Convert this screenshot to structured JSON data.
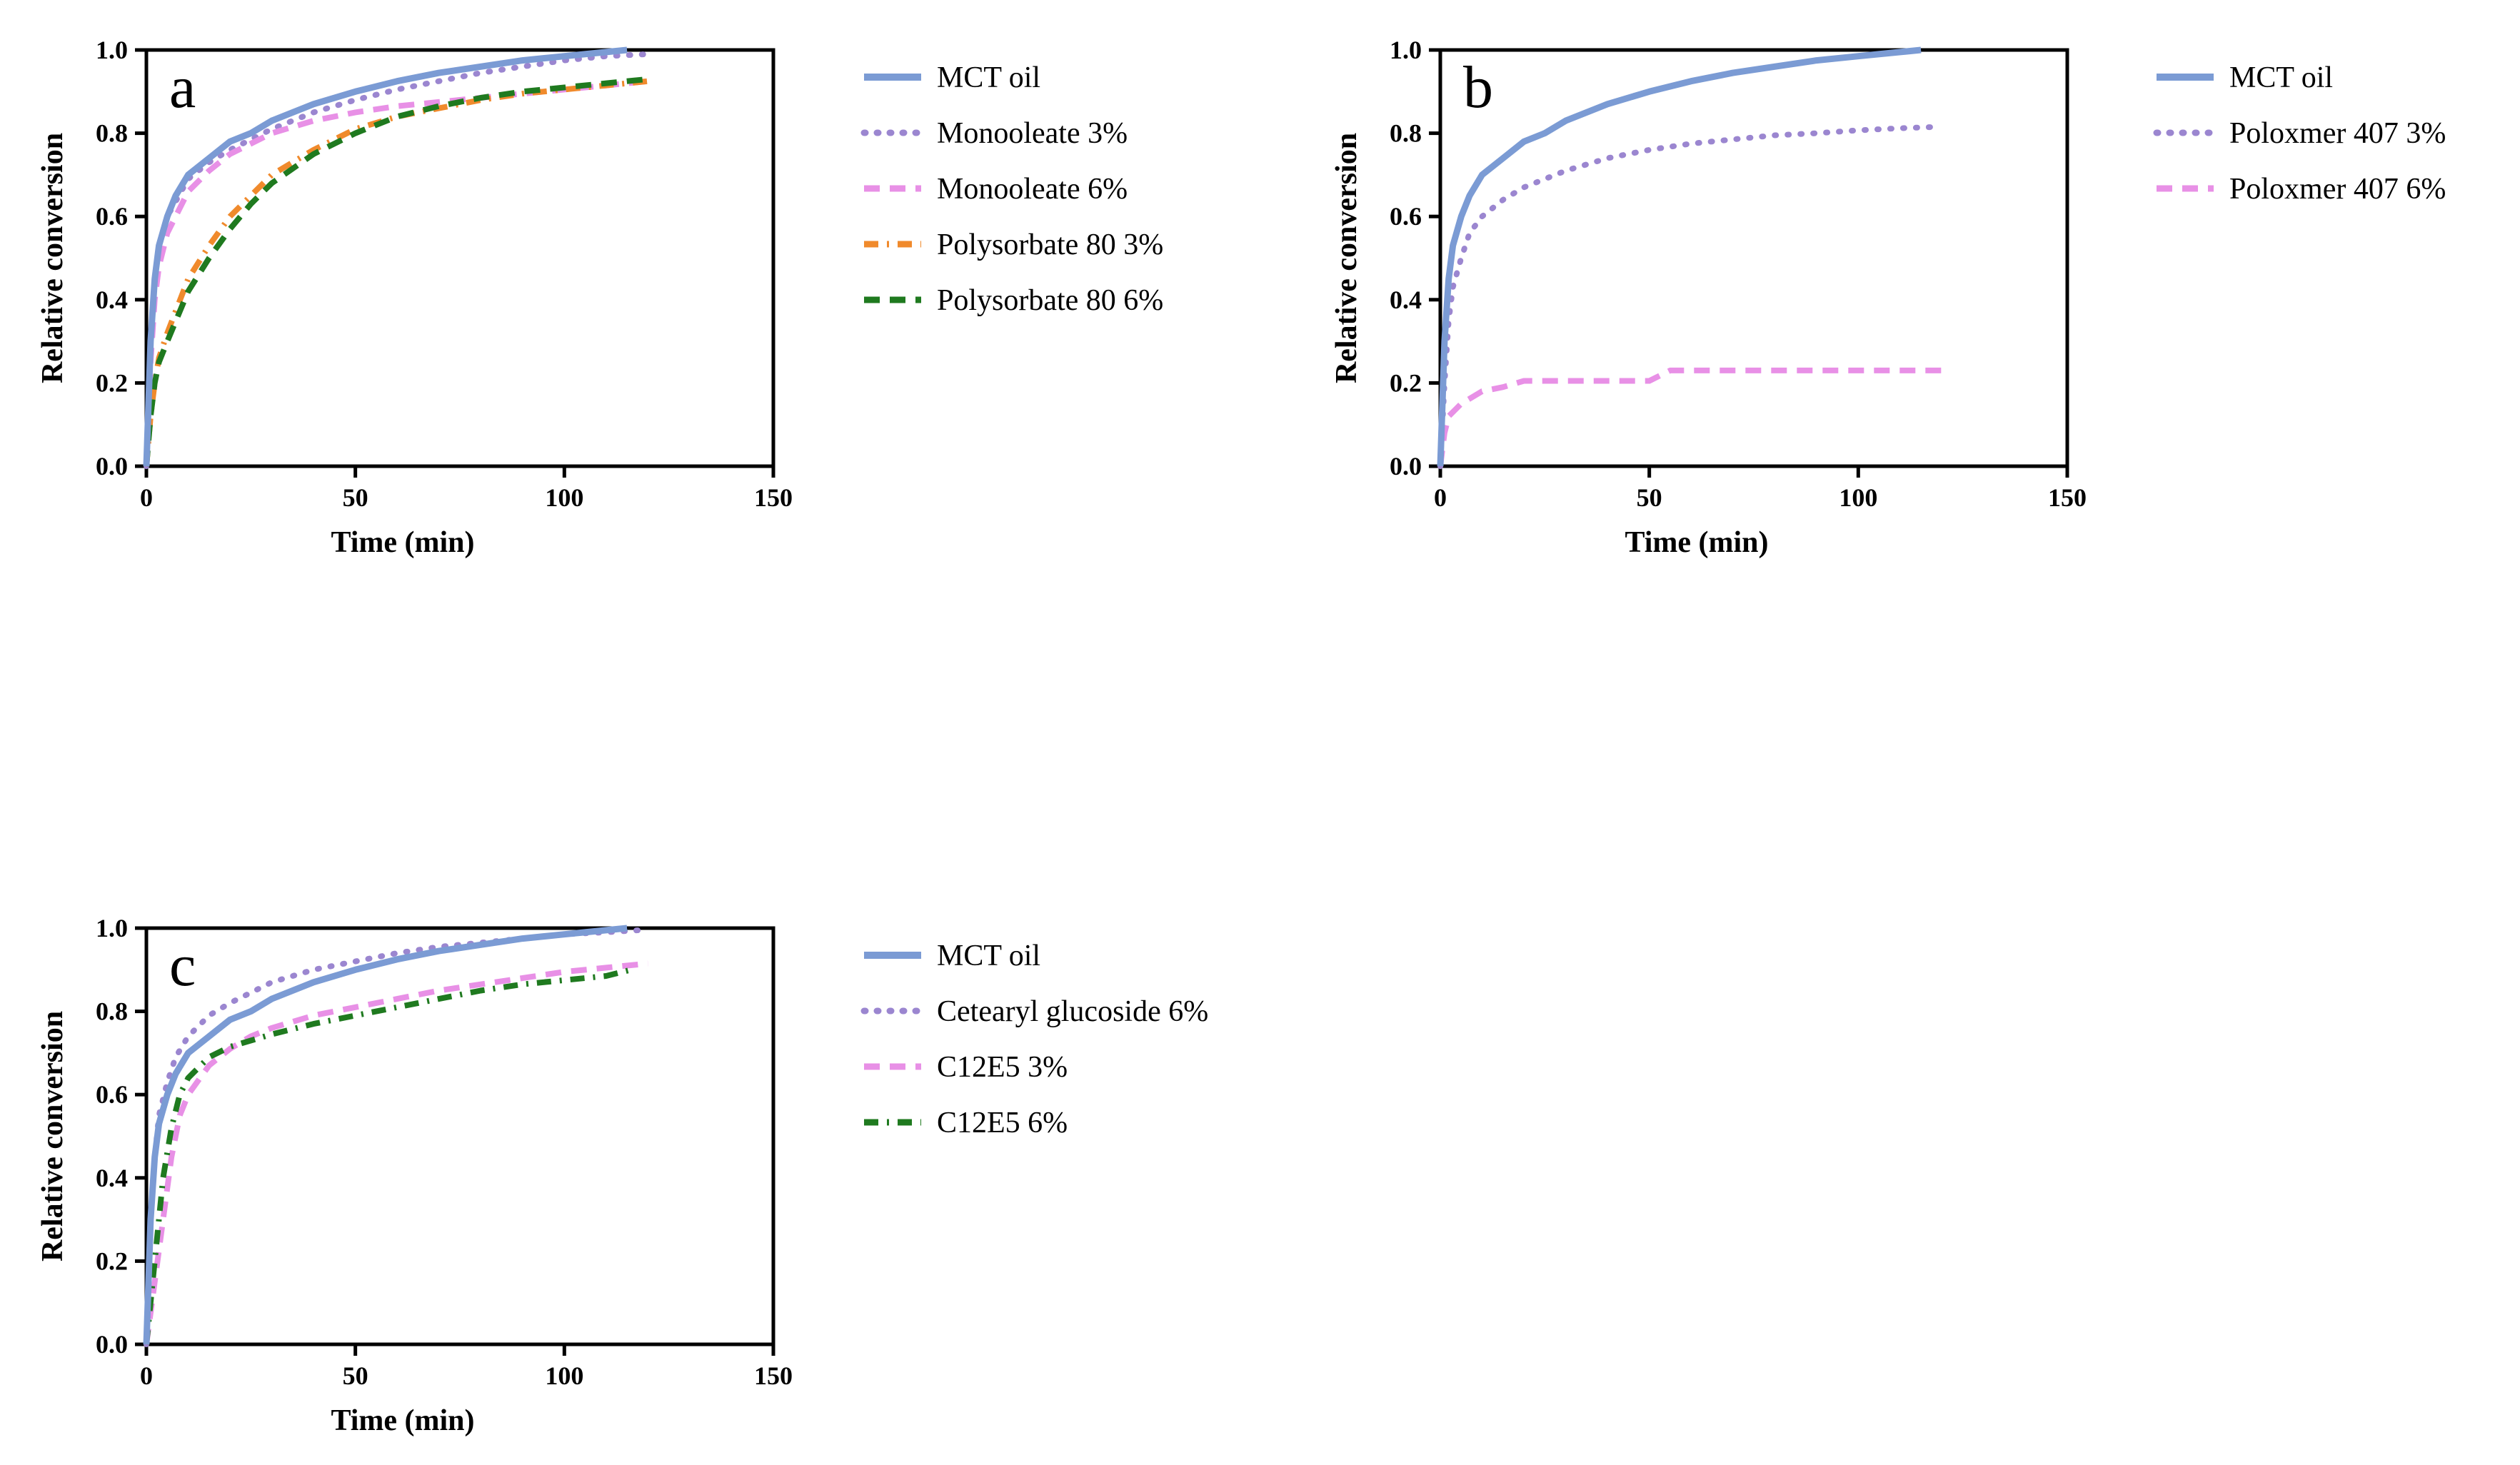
{
  "chart_data": [
    {
      "type": "line",
      "panel_label": "a",
      "xlabel": "Time (min)",
      "ylabel": "Relative conversion",
      "xlim": [
        0,
        150
      ],
      "ylim": [
        0.0,
        1.0
      ],
      "x_ticks": [
        "0",
        "50",
        "100",
        "150"
      ],
      "y_ticks": [
        "0.0",
        "0.2",
        "0.4",
        "0.6",
        "0.8",
        "1.0"
      ],
      "legend_position": "right",
      "series": [
        {
          "name": "MCT oil",
          "color": "#7b9bd4",
          "dash": "solid",
          "points": [
            [
              0,
              0
            ],
            [
              1,
              0.3
            ],
            [
              2,
              0.45
            ],
            [
              3,
              0.53
            ],
            [
              5,
              0.6
            ],
            [
              7,
              0.65
            ],
            [
              10,
              0.7
            ],
            [
              15,
              0.74
            ],
            [
              20,
              0.78
            ],
            [
              25,
              0.8
            ],
            [
              30,
              0.83
            ],
            [
              40,
              0.87
            ],
            [
              50,
              0.9
            ],
            [
              60,
              0.925
            ],
            [
              70,
              0.945
            ],
            [
              80,
              0.96
            ],
            [
              90,
              0.975
            ],
            [
              100,
              0.985
            ],
            [
              110,
              0.995
            ],
            [
              115,
              1.0
            ]
          ]
        },
        {
          "name": "Monooleate 3%",
          "color": "#9b86d0",
          "dash": "dot",
          "points": [
            [
              0,
              0
            ],
            [
              1,
              0.3
            ],
            [
              2,
              0.45
            ],
            [
              3,
              0.53
            ],
            [
              5,
              0.6
            ],
            [
              10,
              0.69
            ],
            [
              15,
              0.73
            ],
            [
              20,
              0.76
            ],
            [
              30,
              0.81
            ],
            [
              40,
              0.85
            ],
            [
              50,
              0.88
            ],
            [
              60,
              0.905
            ],
            [
              70,
              0.925
            ],
            [
              80,
              0.945
            ],
            [
              90,
              0.96
            ],
            [
              100,
              0.975
            ],
            [
              110,
              0.985
            ],
            [
              120,
              0.99
            ]
          ]
        },
        {
          "name": "Monooleate 6%",
          "color": "#e890e6",
          "dash": "dash",
          "points": [
            [
              0,
              0
            ],
            [
              1,
              0.25
            ],
            [
              2,
              0.4
            ],
            [
              3,
              0.48
            ],
            [
              5,
              0.56
            ],
            [
              10,
              0.66
            ],
            [
              15,
              0.71
            ],
            [
              20,
              0.75
            ],
            [
              30,
              0.8
            ],
            [
              40,
              0.83
            ],
            [
              50,
              0.85
            ],
            [
              60,
              0.865
            ],
            [
              70,
              0.875
            ],
            [
              80,
              0.885
            ],
            [
              90,
              0.895
            ],
            [
              100,
              0.905
            ],
            [
              110,
              0.915
            ],
            [
              120,
              0.925
            ]
          ]
        },
        {
          "name": "Polysorbate 80 3%",
          "color": "#f08a2c",
          "dash": "dashdot",
          "points": [
            [
              0,
              0
            ],
            [
              1,
              0.12
            ],
            [
              2,
              0.2
            ],
            [
              3,
              0.26
            ],
            [
              5,
              0.32
            ],
            [
              10,
              0.45
            ],
            [
              15,
              0.53
            ],
            [
              20,
              0.6
            ],
            [
              25,
              0.65
            ],
            [
              30,
              0.7
            ],
            [
              40,
              0.76
            ],
            [
              50,
              0.81
            ],
            [
              60,
              0.84
            ],
            [
              70,
              0.86
            ],
            [
              80,
              0.88
            ],
            [
              90,
              0.895
            ],
            [
              100,
              0.905
            ],
            [
              110,
              0.915
            ],
            [
              120,
              0.925
            ]
          ]
        },
        {
          "name": "Polysorbate 80 6%",
          "color": "#1f7a1f",
          "dash": "dash",
          "points": [
            [
              0,
              0
            ],
            [
              1,
              0.12
            ],
            [
              2,
              0.2
            ],
            [
              3,
              0.25
            ],
            [
              5,
              0.3
            ],
            [
              10,
              0.42
            ],
            [
              15,
              0.5
            ],
            [
              20,
              0.57
            ],
            [
              25,
              0.63
            ],
            [
              30,
              0.68
            ],
            [
              40,
              0.75
            ],
            [
              50,
              0.8
            ],
            [
              60,
              0.84
            ],
            [
              70,
              0.865
            ],
            [
              80,
              0.885
            ],
            [
              90,
              0.9
            ],
            [
              100,
              0.91
            ],
            [
              110,
              0.92
            ],
            [
              120,
              0.93
            ]
          ]
        }
      ]
    },
    {
      "type": "line",
      "panel_label": "b",
      "xlabel": "Time (min)",
      "ylabel": "Relative conversion",
      "xlim": [
        0,
        150
      ],
      "ylim": [
        0.0,
        1.0
      ],
      "x_ticks": [
        "0",
        "50",
        "100",
        "150"
      ],
      "y_ticks": [
        "0.0",
        "0.2",
        "0.4",
        "0.6",
        "0.8",
        "1.0"
      ],
      "legend_position": "right",
      "series": [
        {
          "name": "MCT oil",
          "color": "#7b9bd4",
          "dash": "solid",
          "points": [
            [
              0,
              0
            ],
            [
              1,
              0.3
            ],
            [
              2,
              0.45
            ],
            [
              3,
              0.53
            ],
            [
              5,
              0.6
            ],
            [
              7,
              0.65
            ],
            [
              10,
              0.7
            ],
            [
              15,
              0.74
            ],
            [
              20,
              0.78
            ],
            [
              25,
              0.8
            ],
            [
              30,
              0.83
            ],
            [
              40,
              0.87
            ],
            [
              50,
              0.9
            ],
            [
              60,
              0.925
            ],
            [
              70,
              0.945
            ],
            [
              80,
              0.96
            ],
            [
              90,
              0.975
            ],
            [
              100,
              0.985
            ],
            [
              110,
              0.995
            ],
            [
              115,
              1.0
            ]
          ]
        },
        {
          "name": "Poloxmer 407 3%",
          "color": "#9b86d0",
          "dash": "dot",
          "points": [
            [
              0,
              0
            ],
            [
              1,
              0.2
            ],
            [
              2,
              0.35
            ],
            [
              3,
              0.43
            ],
            [
              5,
              0.5
            ],
            [
              7,
              0.56
            ],
            [
              10,
              0.6
            ],
            [
              15,
              0.64
            ],
            [
              20,
              0.67
            ],
            [
              30,
              0.71
            ],
            [
              40,
              0.74
            ],
            [
              50,
              0.76
            ],
            [
              60,
              0.775
            ],
            [
              70,
              0.785
            ],
            [
              80,
              0.795
            ],
            [
              90,
              0.8
            ],
            [
              100,
              0.807
            ],
            [
              110,
              0.812
            ],
            [
              118,
              0.815
            ]
          ]
        },
        {
          "name": "Poloxmer 407 6%",
          "color": "#e890e6",
          "dash": "dash",
          "points": [
            [
              0,
              0
            ],
            [
              1,
              0.08
            ],
            [
              2,
              0.12
            ],
            [
              5,
              0.15
            ],
            [
              10,
              0.18
            ],
            [
              15,
              0.19
            ],
            [
              20,
              0.205
            ],
            [
              50,
              0.205
            ],
            [
              55,
              0.23
            ],
            [
              120,
              0.23
            ]
          ]
        }
      ]
    },
    {
      "type": "line",
      "panel_label": "c",
      "xlabel": "Time (min)",
      "ylabel": "Relative conversion",
      "xlim": [
        0,
        150
      ],
      "ylim": [
        0.0,
        1.0
      ],
      "x_ticks": [
        "0",
        "50",
        "100",
        "150"
      ],
      "y_ticks": [
        "0.0",
        "0.2",
        "0.4",
        "0.6",
        "0.8",
        "1.0"
      ],
      "legend_position": "right",
      "series": [
        {
          "name": "MCT oil",
          "color": "#7b9bd4",
          "dash": "solid",
          "points": [
            [
              0,
              0
            ],
            [
              1,
              0.3
            ],
            [
              2,
              0.45
            ],
            [
              3,
              0.53
            ],
            [
              5,
              0.6
            ],
            [
              7,
              0.65
            ],
            [
              10,
              0.7
            ],
            [
              15,
              0.74
            ],
            [
              20,
              0.78
            ],
            [
              25,
              0.8
            ],
            [
              30,
              0.83
            ],
            [
              40,
              0.87
            ],
            [
              50,
              0.9
            ],
            [
              60,
              0.925
            ],
            [
              70,
              0.945
            ],
            [
              80,
              0.96
            ],
            [
              90,
              0.975
            ],
            [
              100,
              0.985
            ],
            [
              110,
              0.995
            ],
            [
              115,
              1.0
            ]
          ]
        },
        {
          "name": "Cetearyl glucoside 6%",
          "color": "#9b86d0",
          "dash": "dot",
          "points": [
            [
              0,
              0
            ],
            [
              1,
              0.3
            ],
            [
              2,
              0.45
            ],
            [
              3,
              0.55
            ],
            [
              5,
              0.63
            ],
            [
              7,
              0.69
            ],
            [
              10,
              0.74
            ],
            [
              15,
              0.79
            ],
            [
              20,
              0.82
            ],
            [
              30,
              0.87
            ],
            [
              40,
              0.9
            ],
            [
              50,
              0.92
            ],
            [
              60,
              0.94
            ],
            [
              70,
              0.955
            ],
            [
              80,
              0.965
            ],
            [
              90,
              0.975
            ],
            [
              100,
              0.985
            ],
            [
              110,
              0.99
            ],
            [
              118,
              0.995
            ]
          ]
        },
        {
          "name": "C12E5 3%",
          "color": "#e890e6",
          "dash": "dash",
          "points": [
            [
              0,
              0
            ],
            [
              2,
              0.15
            ],
            [
              4,
              0.3
            ],
            [
              6,
              0.45
            ],
            [
              8,
              0.55
            ],
            [
              10,
              0.6
            ],
            [
              15,
              0.67
            ],
            [
              20,
              0.71
            ],
            [
              25,
              0.74
            ],
            [
              30,
              0.76
            ],
            [
              40,
              0.79
            ],
            [
              50,
              0.81
            ],
            [
              60,
              0.83
            ],
            [
              70,
              0.85
            ],
            [
              80,
              0.865
            ],
            [
              90,
              0.88
            ],
            [
              100,
              0.895
            ],
            [
              110,
              0.905
            ],
            [
              120,
              0.915
            ]
          ]
        },
        {
          "name": "C12E5 6%",
          "color": "#1f7a1f",
          "dash": "dashdot",
          "points": [
            [
              0,
              0
            ],
            [
              2,
              0.2
            ],
            [
              4,
              0.4
            ],
            [
              6,
              0.52
            ],
            [
              8,
              0.6
            ],
            [
              10,
              0.64
            ],
            [
              15,
              0.69
            ],
            [
              20,
              0.715
            ],
            [
              30,
              0.745
            ],
            [
              40,
              0.77
            ],
            [
              50,
              0.79
            ],
            [
              60,
              0.81
            ],
            [
              70,
              0.83
            ],
            [
              80,
              0.85
            ],
            [
              90,
              0.865
            ],
            [
              100,
              0.875
            ],
            [
              110,
              0.885
            ],
            [
              116,
              0.9
            ]
          ]
        }
      ]
    }
  ]
}
